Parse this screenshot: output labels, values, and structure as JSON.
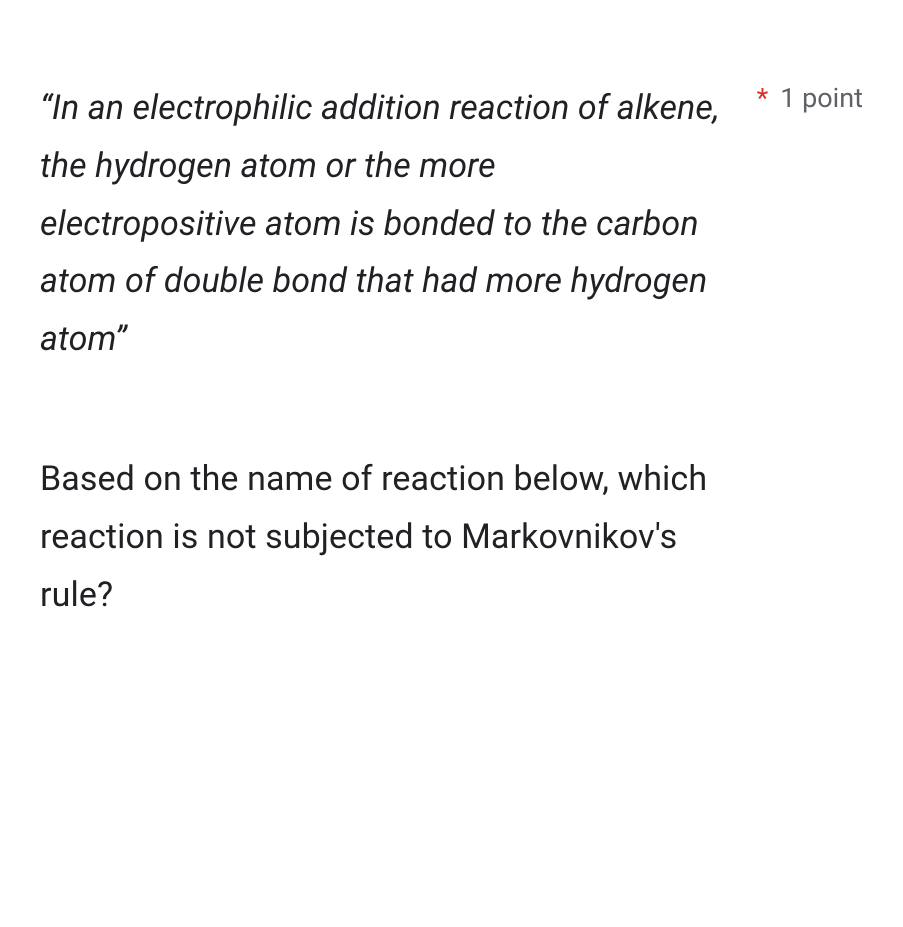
{
  "question": {
    "quote": "“In an electrophilic addition reaction of alkene, the hydrogen atom or the more electropositive atom is bonded to the carbon atom of double bond that had more hydrogen atom”",
    "followup": "Based on the name of reaction below, which reaction is not subjected to Markovnikov's rule?",
    "required_marker": "*",
    "points": "1 point"
  },
  "styles": {
    "text_color": "#202124",
    "meta_color": "#5f6368",
    "required_color": "#d93025",
    "background_color": "#ffffff",
    "quote_fontsize": 34,
    "meta_fontsize": 27
  }
}
